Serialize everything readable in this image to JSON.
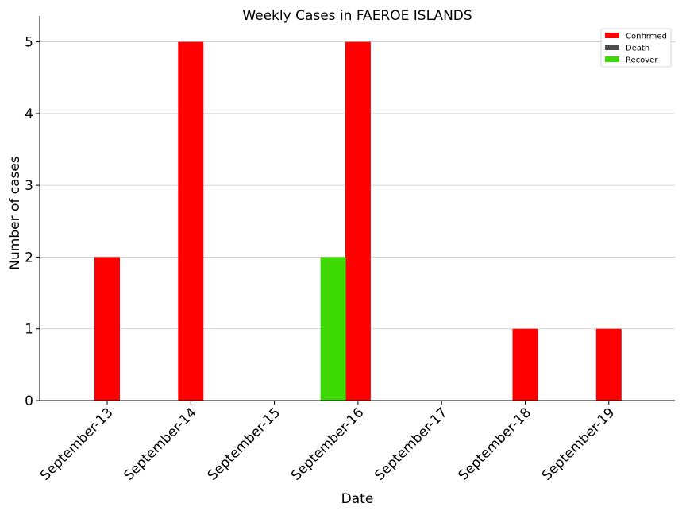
{
  "chart_data": {
    "type": "bar",
    "title": "Weekly Cases in FAEROE ISLANDS",
    "xlabel": "Date",
    "ylabel": "Number of cases",
    "categories": [
      "September-13",
      "September-14",
      "September-15",
      "September-16",
      "September-17",
      "September-18",
      "September-19"
    ],
    "series": [
      {
        "name": "Confirmed",
        "color": "#ff0000",
        "values": [
          2,
          5,
          0,
          5,
          0,
          1,
          1
        ]
      },
      {
        "name": "Death",
        "color": "#4d4d4d",
        "values": [
          0,
          0,
          0,
          0,
          0,
          0,
          0
        ]
      },
      {
        "name": "Recover",
        "color": "#3dd904",
        "values": [
          0,
          0,
          2,
          0,
          0,
          0,
          0
        ]
      }
    ],
    "ylim": [
      0,
      5.25
    ],
    "yticks": [
      0,
      1,
      2,
      3,
      4,
      5
    ],
    "grid": true,
    "legend_position": "top-right"
  }
}
